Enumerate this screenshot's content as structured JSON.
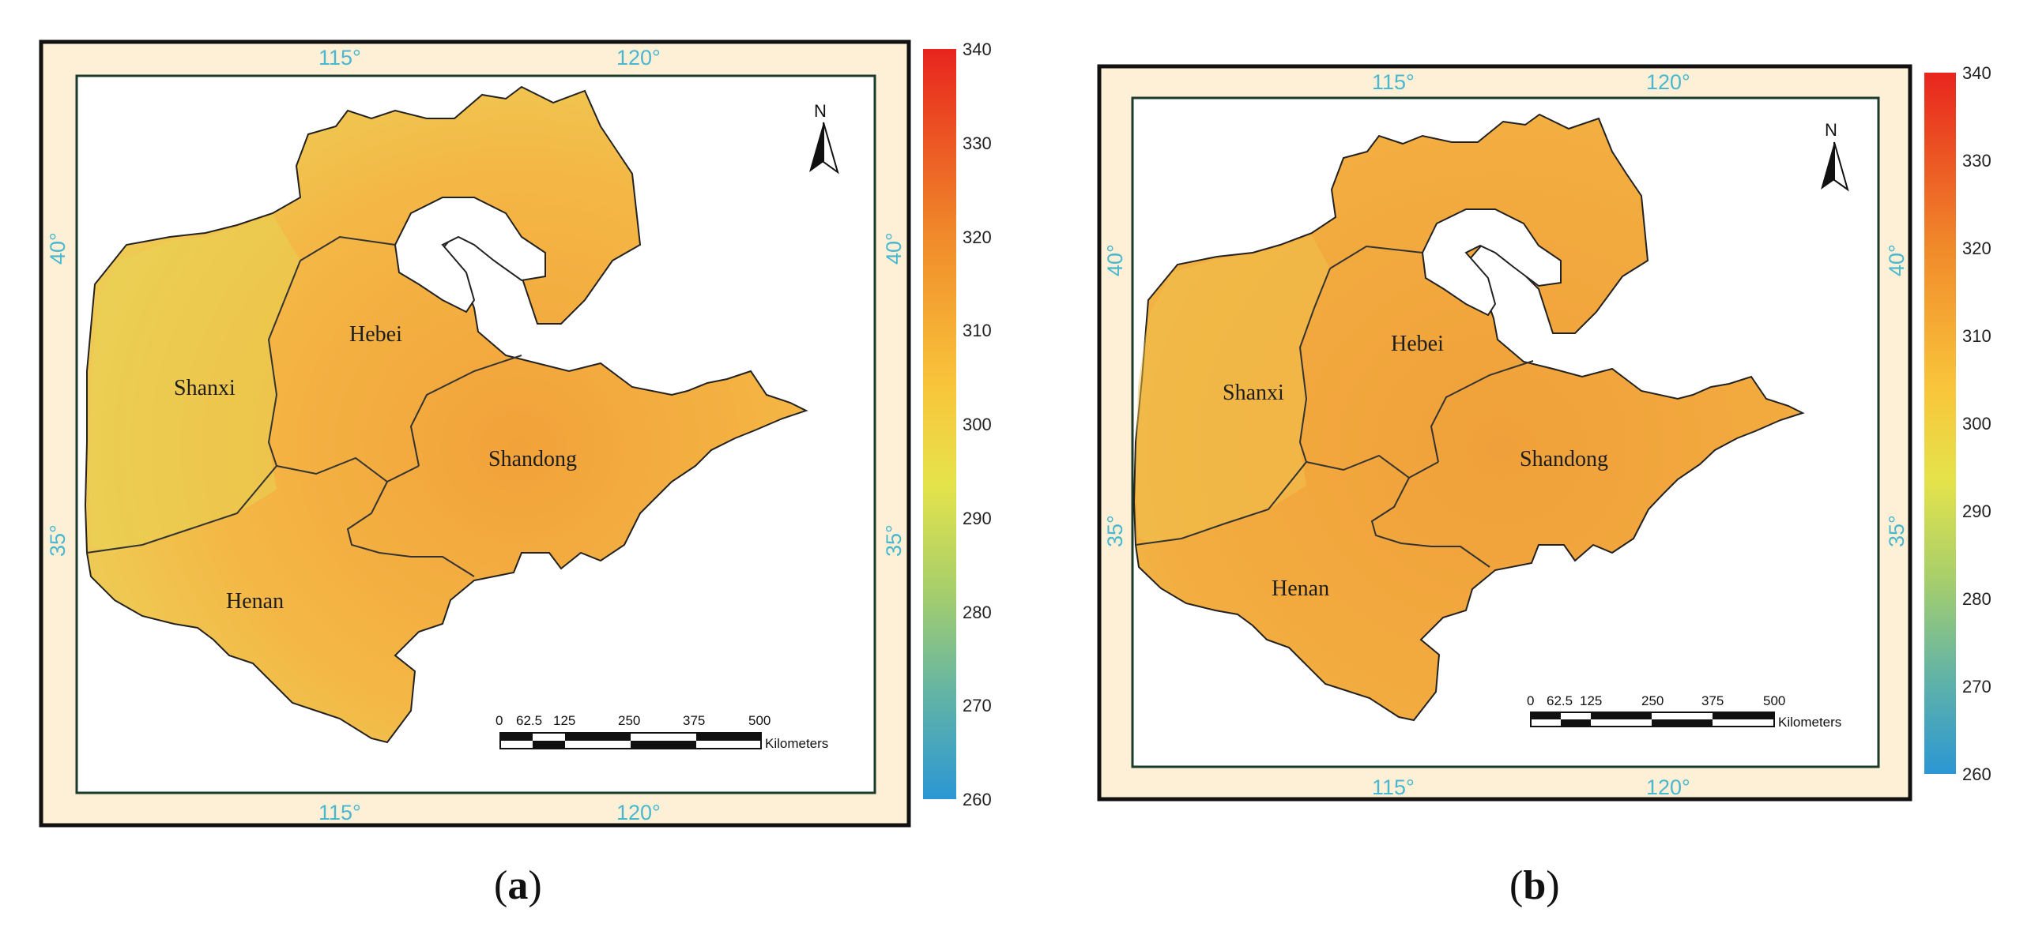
{
  "panels": [
    {
      "id": "a",
      "caption": {
        "open": "(",
        "letter": "a",
        "close": ")"
      },
      "lon_ticks_top": [
        "115°",
        "120°"
      ],
      "lon_ticks_bottom": [
        "115°",
        "120°"
      ],
      "lat_ticks_left": [
        "40°",
        "35°"
      ],
      "lat_ticks_right": [
        "40°",
        "35°"
      ],
      "regions": [
        "Shanxi",
        "Hebei",
        "Shandong",
        "Henan"
      ],
      "north_arrow": "N",
      "scale_bar": {
        "ticks": [
          "0",
          "62.5",
          "125",
          "250",
          "375",
          "500"
        ],
        "unit": "Kilometers"
      },
      "colorbar": {
        "min": 260,
        "max": 340,
        "ticks": [
          "340",
          "330",
          "320",
          "310",
          "300",
          "290",
          "280",
          "270",
          "260"
        ]
      }
    },
    {
      "id": "b",
      "caption": {
        "open": "(",
        "letter": "b",
        "close": ")"
      },
      "lon_ticks_top": [
        "115°",
        "120°"
      ],
      "lon_ticks_bottom": [
        "115°",
        "120°"
      ],
      "lat_ticks_left": [
        "40°",
        "35°"
      ],
      "lat_ticks_right": [
        "40°",
        "35°"
      ],
      "regions": [
        "Shanxi",
        "Hebei",
        "Shandong",
        "Henan"
      ],
      "north_arrow": "N",
      "scale_bar": {
        "ticks": [
          "0",
          "62.5",
          "125",
          "250",
          "375",
          "500"
        ],
        "unit": "Kilometers"
      },
      "colorbar": {
        "min": 260,
        "max": 340,
        "ticks": [
          "340",
          "330",
          "320",
          "310",
          "300",
          "290",
          "280",
          "270",
          "260"
        ]
      }
    }
  ],
  "colors": {
    "frame_fill": "#fdf0d6",
    "map_fill": "#f5b23e",
    "coord_text": "#49b7cf",
    "colorbar_stops": [
      "#e8251e",
      "#f08a2a",
      "#f9c53b",
      "#e5e34a",
      "#a8cf6a",
      "#63b4a6",
      "#2b97d4"
    ]
  }
}
